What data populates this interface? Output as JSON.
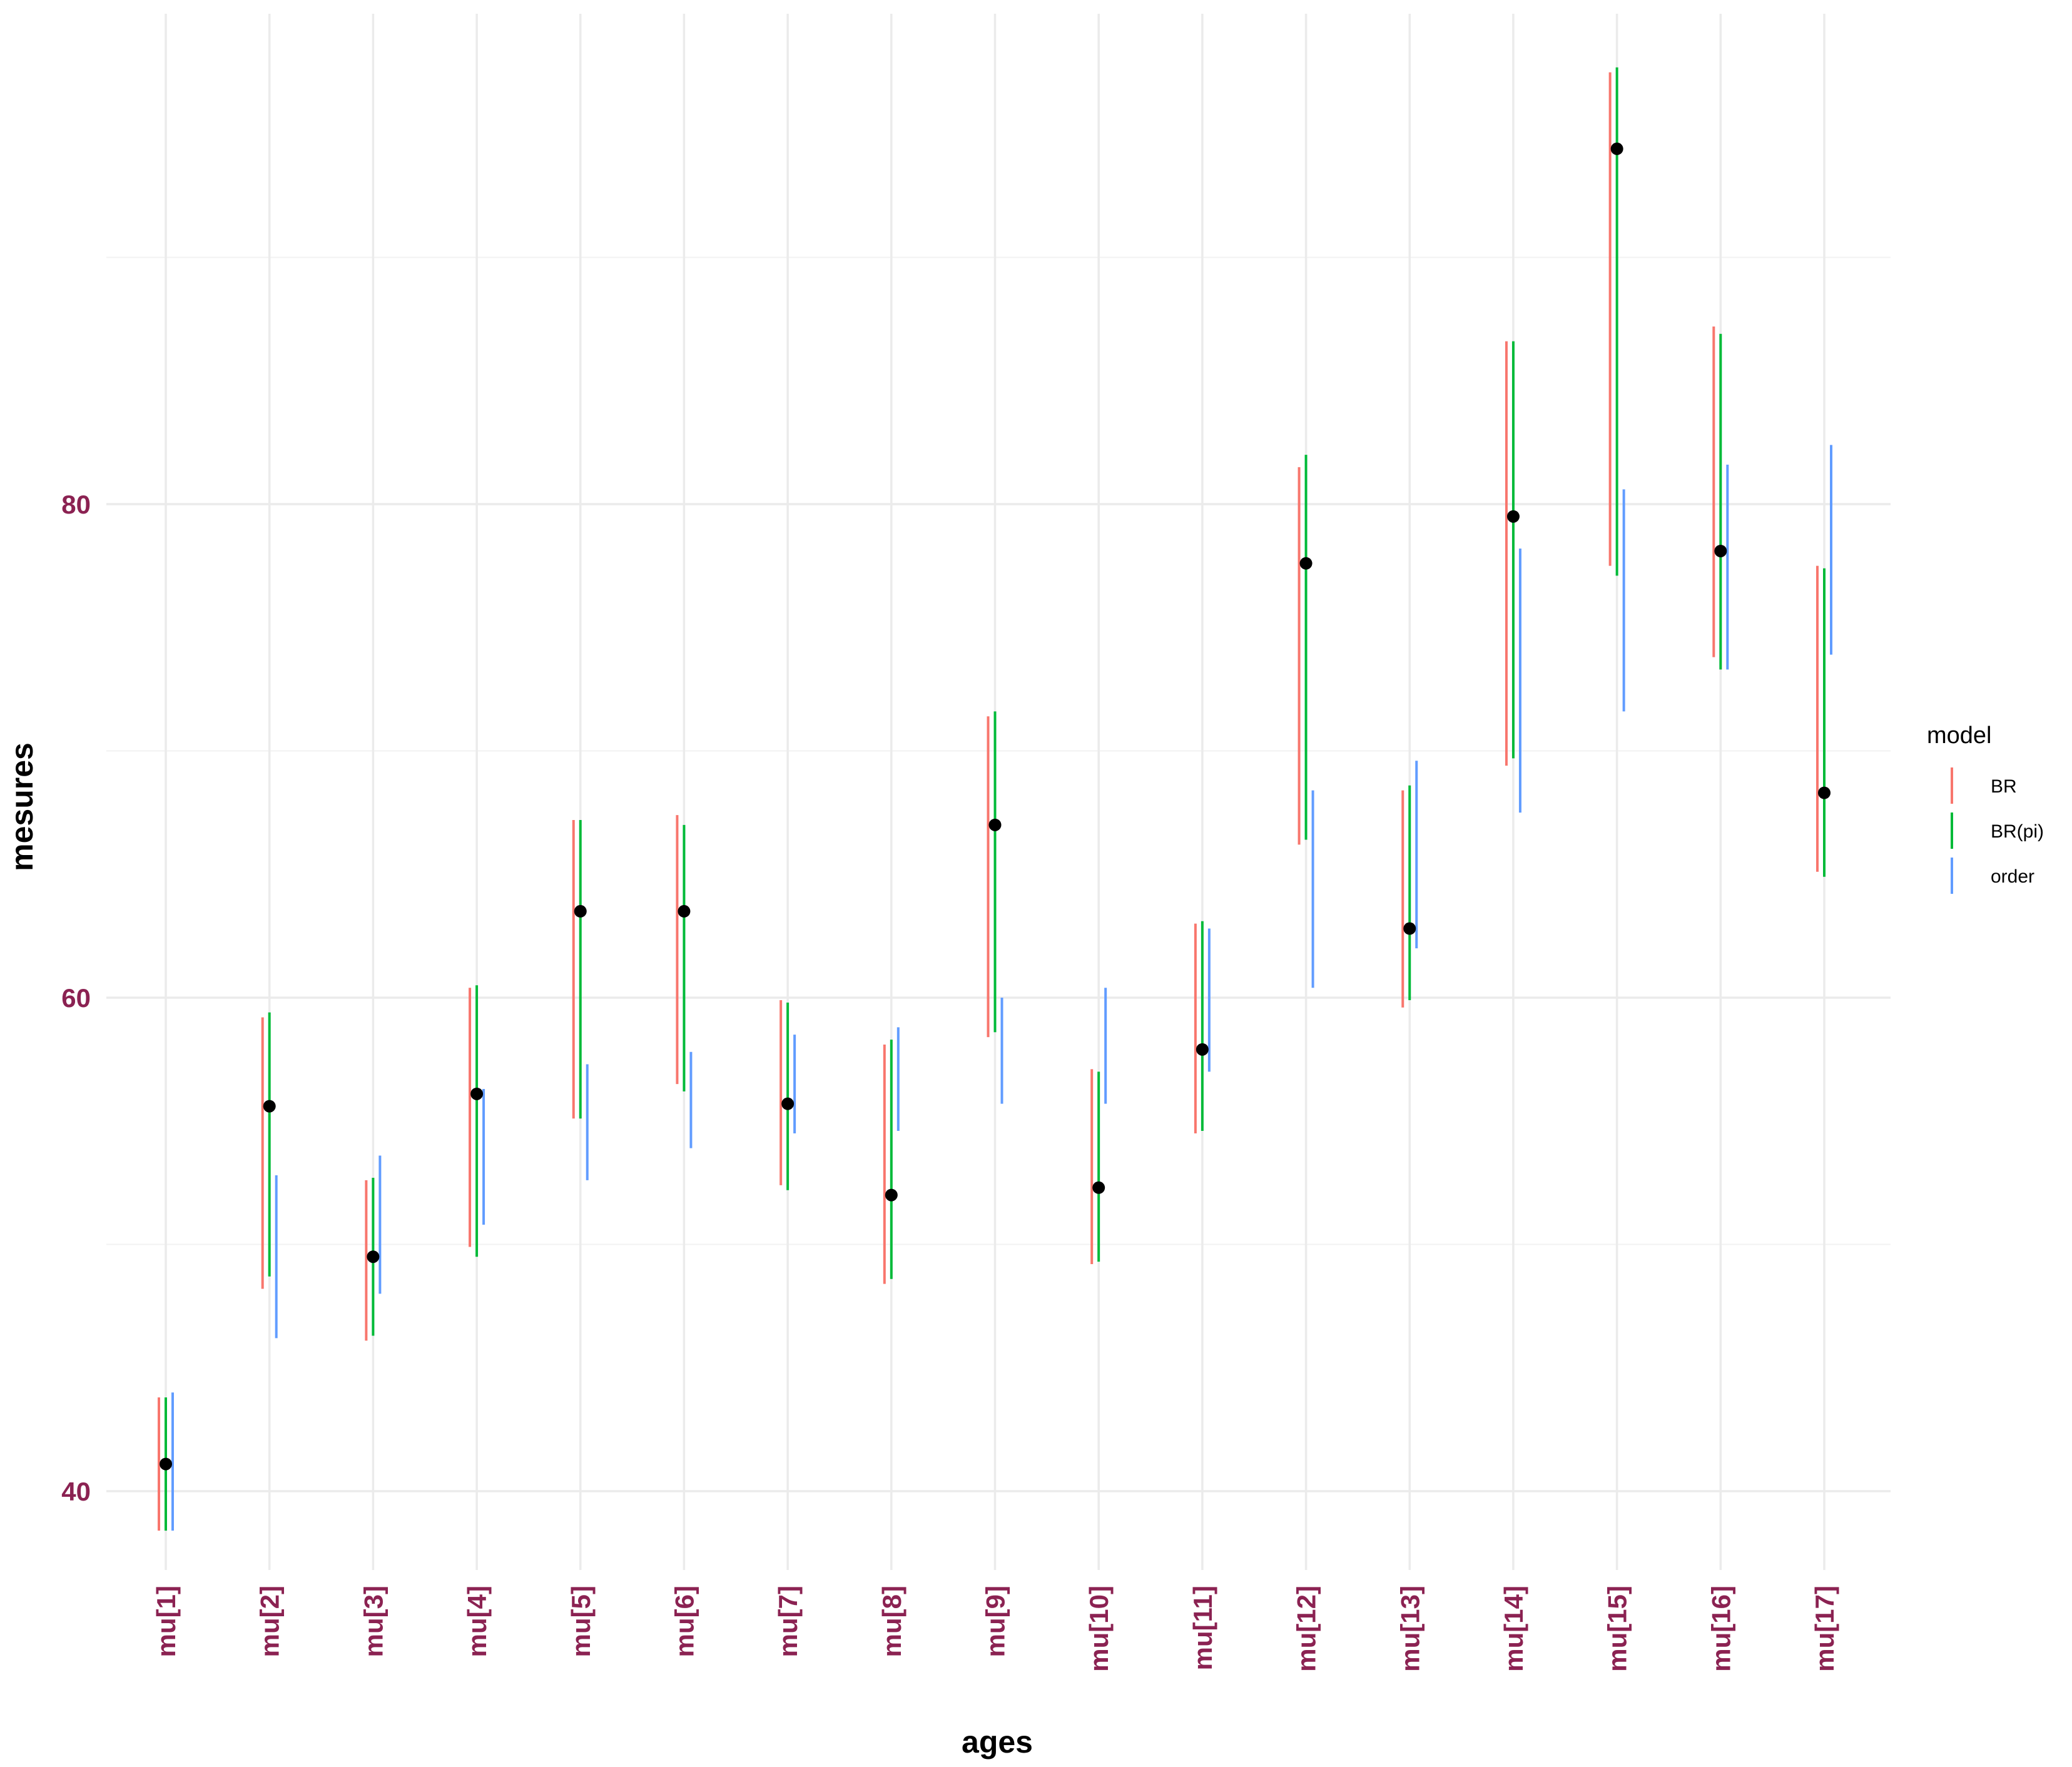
{
  "chart_data": {
    "type": "errorbar",
    "xlabel": "ages",
    "ylabel": "mesures",
    "categories": [
      "mu[1]",
      "mu[2]",
      "mu[3]",
      "mu[4]",
      "mu[5]",
      "mu[6]",
      "mu[7]",
      "mu[8]",
      "mu[9]",
      "mu[10]",
      "mu[11]",
      "mu[12]",
      "mu[13]",
      "mu[14]",
      "mu[15]",
      "mu[16]",
      "mu[17]"
    ],
    "ylim": [
      36.9,
      98.8
    ],
    "yticks": [
      40,
      60,
      80
    ],
    "ytick_labels": [
      "40",
      "60",
      "80"
    ],
    "tick_label_color": "#8B2252",
    "grid": true,
    "legend": {
      "title": "model",
      "position": "right"
    },
    "points": [
      41.1,
      55.6,
      49.5,
      56.1,
      63.5,
      63.5,
      55.7,
      52.0,
      67.0,
      52.3,
      57.9,
      77.6,
      62.8,
      79.5,
      94.4,
      78.1,
      68.3
    ],
    "point_color": "#000000",
    "series": [
      {
        "name": "BR",
        "color": "#F8766D",
        "low": [
          38.4,
          48.2,
          46.1,
          49.9,
          55.1,
          56.5,
          52.4,
          48.4,
          58.4,
          49.2,
          54.5,
          66.2,
          59.6,
          69.4,
          77.5,
          73.8,
          65.1
        ],
        "high": [
          43.8,
          59.2,
          52.6,
          60.4,
          67.2,
          67.4,
          59.9,
          58.1,
          71.4,
          57.1,
          63.0,
          81.5,
          68.4,
          86.6,
          97.5,
          87.2,
          77.5
        ]
      },
      {
        "name": "BR(pi)",
        "color": "#00BA38",
        "low": [
          38.4,
          48.7,
          46.3,
          49.5,
          55.1,
          56.2,
          52.2,
          48.6,
          58.6,
          49.3,
          54.6,
          66.4,
          59.9,
          69.7,
          77.1,
          73.3,
          64.9
        ],
        "high": [
          43.8,
          59.4,
          52.7,
          60.5,
          67.2,
          67.0,
          59.8,
          58.3,
          71.6,
          57.0,
          63.1,
          82.0,
          68.6,
          86.6,
          97.7,
          86.9,
          77.4
        ]
      },
      {
        "name": "order",
        "color": "#619CFF",
        "low": [
          38.4,
          46.2,
          48.0,
          50.8,
          52.6,
          53.9,
          54.5,
          54.6,
          55.7,
          55.7,
          57.0,
          60.4,
          62.0,
          67.5,
          71.6,
          73.3,
          73.9
        ],
        "high": [
          44.0,
          52.8,
          53.6,
          56.3,
          57.3,
          57.8,
          58.5,
          58.8,
          60.0,
          60.4,
          62.8,
          68.4,
          69.6,
          78.2,
          80.6,
          81.6,
          82.4
        ]
      }
    ]
  }
}
